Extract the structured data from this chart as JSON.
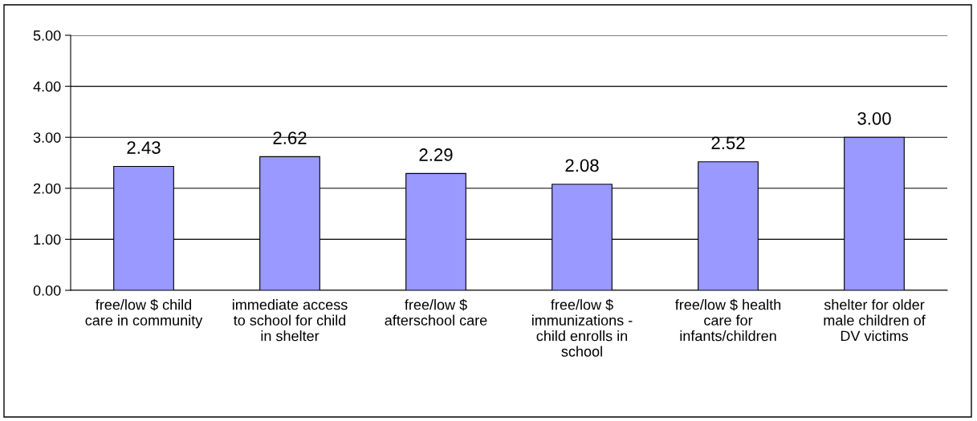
{
  "chart_data": {
    "type": "bar",
    "categories": [
      "free/low $ child\ncare in community",
      "immediate access\nto school for child\nin shelter",
      "free/low $\nafterschool care",
      "free/low $\nimmunizations -\nchild enrolls in\nschool",
      "free/low $ health\ncare for\ninfants/children",
      "shelter for older\nmale children of\nDV victims"
    ],
    "values": [
      2.43,
      2.62,
      2.29,
      2.08,
      2.52,
      3.0
    ],
    "value_labels": [
      "2.43",
      "2.62",
      "2.29",
      "2.08",
      "2.52",
      "3.00"
    ],
    "color": "#9999ff",
    "ylim": [
      0,
      5
    ],
    "yticks": [
      {
        "value": 0,
        "label": "0.00"
      },
      {
        "value": 1,
        "label": "1.00"
      },
      {
        "value": 2,
        "label": "2.00"
      },
      {
        "value": 3,
        "label": "3.00"
      },
      {
        "value": 4,
        "label": "4.00"
      },
      {
        "value": 5,
        "label": "5.00"
      }
    ],
    "grid": "y",
    "legend": false
  }
}
